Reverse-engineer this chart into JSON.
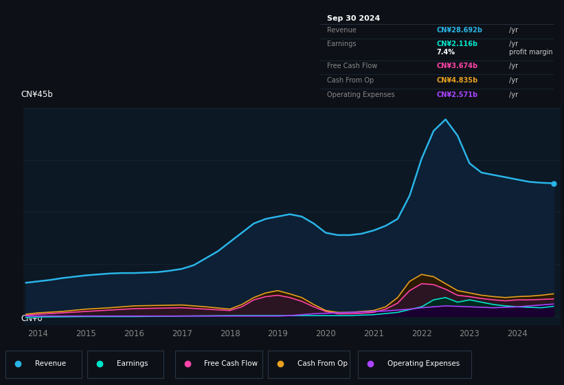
{
  "bg_color": "#0d1117",
  "plot_bg_color": "#0d1825",
  "grid_color": "#1a2535",
  "title_label": "CN¥45b",
  "zero_label": "CN¥0",
  "x_ticks": [
    2014,
    2015,
    2016,
    2017,
    2018,
    2019,
    2020,
    2021,
    2022,
    2023,
    2024
  ],
  "y_max": 45,
  "series": {
    "revenue": {
      "color": "#29b5e8",
      "label": "Revenue",
      "values_x": [
        2013.75,
        2014.0,
        2014.25,
        2014.5,
        2014.75,
        2015.0,
        2015.25,
        2015.5,
        2015.75,
        2016.0,
        2016.25,
        2016.5,
        2016.75,
        2017.0,
        2017.25,
        2017.5,
        2017.75,
        2018.0,
        2018.25,
        2018.5,
        2018.75,
        2019.0,
        2019.25,
        2019.5,
        2019.75,
        2020.0,
        2020.25,
        2020.5,
        2020.75,
        2021.0,
        2021.25,
        2021.5,
        2021.75,
        2022.0,
        2022.25,
        2022.5,
        2022.75,
        2023.0,
        2023.25,
        2023.5,
        2023.75,
        2024.0,
        2024.25,
        2024.5,
        2024.75
      ],
      "values_y": [
        7.2,
        7.5,
        7.8,
        8.2,
        8.5,
        8.8,
        9.0,
        9.2,
        9.3,
        9.3,
        9.4,
        9.5,
        9.8,
        10.2,
        11.0,
        12.5,
        14.0,
        16.0,
        18.0,
        20.0,
        21.0,
        21.5,
        22.0,
        21.5,
        20.0,
        18.0,
        17.5,
        17.5,
        17.8,
        18.5,
        19.5,
        21.0,
        26.0,
        34.0,
        40.0,
        42.5,
        39.0,
        33.0,
        31.0,
        30.5,
        30.0,
        29.5,
        29.0,
        28.8,
        28.7
      ]
    },
    "earnings": {
      "color": "#00e5cc",
      "label": "Earnings",
      "values_x": [
        2013.75,
        2014.0,
        2015.0,
        2016.0,
        2017.0,
        2018.0,
        2018.5,
        2019.0,
        2019.5,
        2020.0,
        2020.25,
        2020.5,
        2021.0,
        2021.5,
        2022.0,
        2022.25,
        2022.5,
        2022.75,
        2023.0,
        2023.25,
        2023.5,
        2023.75,
        2024.0,
        2024.5,
        2024.75
      ],
      "values_y": [
        -0.3,
        -0.2,
        -0.1,
        -0.1,
        0.0,
        0.1,
        0.1,
        0.1,
        0.1,
        0.1,
        0.1,
        0.1,
        0.3,
        0.8,
        2.0,
        3.5,
        4.0,
        3.0,
        3.5,
        3.0,
        2.5,
        2.2,
        2.0,
        1.8,
        2.1
      ]
    },
    "free_cash_flow": {
      "color": "#ff44aa",
      "label": "Free Cash Flow",
      "values_x": [
        2013.75,
        2014.0,
        2014.5,
        2015.0,
        2015.5,
        2016.0,
        2016.5,
        2017.0,
        2017.5,
        2018.0,
        2018.25,
        2018.5,
        2018.75,
        2019.0,
        2019.25,
        2019.5,
        2019.75,
        2020.0,
        2020.25,
        2020.5,
        2020.75,
        2021.0,
        2021.25,
        2021.5,
        2021.75,
        2022.0,
        2022.25,
        2022.5,
        2022.75,
        2023.0,
        2023.25,
        2023.5,
        2023.75,
        2024.0,
        2024.25,
        2024.5,
        2024.75
      ],
      "values_y": [
        0.2,
        0.4,
        0.7,
        1.0,
        1.3,
        1.6,
        1.7,
        1.8,
        1.5,
        1.2,
        2.0,
        3.5,
        4.2,
        4.5,
        4.0,
        3.2,
        2.0,
        1.0,
        0.5,
        0.5,
        0.6,
        0.8,
        1.5,
        2.8,
        5.5,
        7.0,
        6.8,
        5.8,
        4.5,
        4.2,
        3.8,
        3.5,
        3.3,
        3.5,
        3.5,
        3.6,
        3.7
      ]
    },
    "cash_from_op": {
      "color": "#e8a020",
      "label": "Cash From Op",
      "values_x": [
        2013.75,
        2014.0,
        2014.5,
        2015.0,
        2015.5,
        2016.0,
        2016.5,
        2017.0,
        2017.5,
        2018.0,
        2018.25,
        2018.5,
        2018.75,
        2019.0,
        2019.25,
        2019.5,
        2019.75,
        2020.0,
        2020.25,
        2020.5,
        2020.75,
        2021.0,
        2021.25,
        2021.5,
        2021.75,
        2022.0,
        2022.25,
        2022.5,
        2022.75,
        2023.0,
        2023.25,
        2023.5,
        2023.75,
        2024.0,
        2024.25,
        2024.5,
        2024.75
      ],
      "values_y": [
        0.4,
        0.7,
        1.0,
        1.5,
        1.8,
        2.2,
        2.3,
        2.4,
        2.0,
        1.5,
        2.5,
        4.0,
        5.0,
        5.5,
        4.8,
        4.0,
        2.5,
        1.2,
        0.8,
        0.8,
        1.0,
        1.2,
        2.0,
        4.0,
        7.5,
        9.0,
        8.5,
        7.0,
        5.5,
        5.0,
        4.5,
        4.2,
        4.0,
        4.2,
        4.3,
        4.5,
        4.8
      ]
    },
    "operating_expenses": {
      "color": "#aa44ff",
      "label": "Operating Expenses",
      "values_x": [
        2013.75,
        2014.0,
        2015.0,
        2016.0,
        2017.0,
        2018.0,
        2018.75,
        2019.0,
        2019.25,
        2019.5,
        2019.75,
        2020.0,
        2020.25,
        2020.5,
        2020.75,
        2021.0,
        2021.25,
        2021.5,
        2021.75,
        2022.0,
        2022.25,
        2022.5,
        2022.75,
        2023.0,
        2023.25,
        2023.5,
        2023.75,
        2024.0,
        2024.25,
        2024.5,
        2024.75
      ],
      "values_y": [
        0.0,
        0.0,
        0.0,
        0.0,
        0.0,
        0.0,
        0.0,
        0.0,
        0.1,
        0.3,
        0.5,
        0.6,
        0.7,
        0.8,
        0.9,
        1.0,
        1.1,
        1.3,
        1.5,
        1.8,
        2.0,
        2.2,
        2.1,
        2.0,
        1.9,
        1.8,
        1.9,
        2.0,
        2.2,
        2.4,
        2.6
      ]
    }
  },
  "info_box": {
    "date": "Sep 30 2024",
    "rows": [
      {
        "label": "Revenue",
        "value": "CN¥28.692b",
        "suffix": " /yr",
        "value_color": "#29b5e8"
      },
      {
        "label": "Earnings",
        "value": "CN¥2.116b",
        "suffix": " /yr",
        "value_color": "#00e5cc"
      },
      {
        "label": "",
        "value": "7.4%",
        "suffix": " profit margin",
        "value_color": "#ffffff"
      },
      {
        "label": "Free Cash Flow",
        "value": "CN¥3.674b",
        "suffix": " /yr",
        "value_color": "#ff44aa"
      },
      {
        "label": "Cash From Op",
        "value": "CN¥4.835b",
        "suffix": " /yr",
        "value_color": "#e8a020"
      },
      {
        "label": "Operating Expenses",
        "value": "CN¥2.571b",
        "suffix": " /yr",
        "value_color": "#aa44ff"
      }
    ]
  },
  "legend": [
    {
      "label": "Revenue",
      "color": "#29b5e8"
    },
    {
      "label": "Earnings",
      "color": "#00e5cc"
    },
    {
      "label": "Free Cash Flow",
      "color": "#ff44aa"
    },
    {
      "label": "Cash From Op",
      "color": "#e8a020"
    },
    {
      "label": "Operating Expenses",
      "color": "#aa44ff"
    }
  ]
}
